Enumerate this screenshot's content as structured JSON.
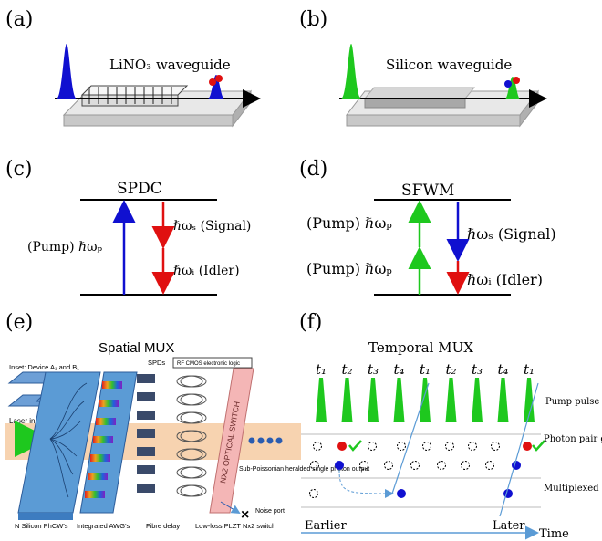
{
  "panels": {
    "a": {
      "letter": "(a)",
      "title": "LiNO₃ waveguide"
    },
    "b": {
      "letter": "(b)",
      "title": "Silicon waveguide"
    },
    "c": {
      "letter": "(c)",
      "title": "SPDC",
      "pump": "(Pump) ℏωₚ",
      "signal": "ℏωₛ (Signal)",
      "idler": "ℏωᵢ  (Idler)"
    },
    "d": {
      "letter": "(d)",
      "title": "SFWM",
      "pump1": "(Pump) ℏωₚ",
      "pump2": "(Pump) ℏωₚ",
      "signal": "ℏωₛ  (Signal)",
      "idler": "ℏωᵢ (Idler)"
    },
    "e": {
      "letter": "(e)",
      "title": "Spatial MUX",
      "inset": "Inset: Device A₁ and B₁",
      "laser": "Laser input",
      "spds": "SPDs",
      "logic": "RF CMOS electronic logic",
      "switch": "NX2 OPTICAL SWITCH",
      "output": "Sub-Poissonian heralded single photon output",
      "noise": "Noise port",
      "bottom": [
        "N Silicon PhCW's",
        "Integrated AWG's",
        "Fibre delay",
        "Low-loss PLZT Nx2 switch"
      ]
    },
    "f": {
      "letter": "(f)",
      "title": "Temporal MUX",
      "pulses": [
        "t₁",
        "t₂",
        "t₃",
        "t₄",
        "t₁",
        "t₂",
        "t₃",
        "t₄",
        "t₁"
      ],
      "pump_pulse": "Pump pulse",
      "pair_gen": "Photon pair generation and heralding",
      "mux_src": "Multiplexed photon source",
      "earlier": "Earlier",
      "later": "Later",
      "time": "Time"
    }
  },
  "colors": {
    "blue": "#1010d0",
    "red": "#e01010",
    "green": "#1ec81e",
    "light_blue": "#5b9bd5",
    "pink": "#f4b6b6",
    "laser_band": "#f7d3b0"
  }
}
